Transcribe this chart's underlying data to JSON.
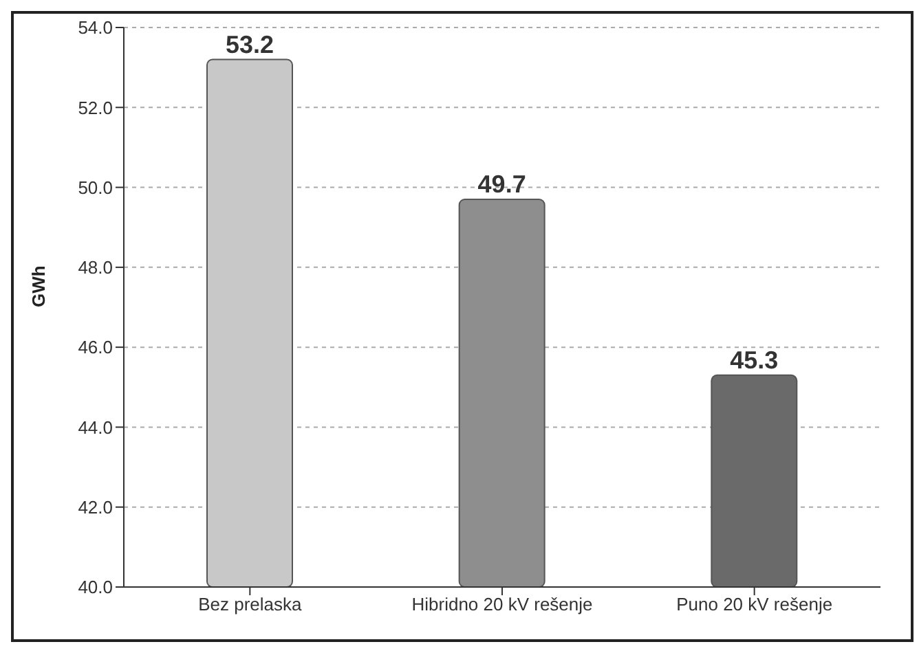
{
  "chart_data": {
    "type": "bar",
    "ylabel": "GWh",
    "categories": [
      "Bez prelaska",
      "Hibridno 20 kV rešenje",
      "Puno 20 kV rešenje"
    ],
    "values": [
      53.2,
      49.7,
      45.3
    ],
    "colors": [
      "#c8c8c8",
      "#8e8e8e",
      "#6a6a6a"
    ],
    "ylim": [
      40,
      54
    ],
    "yticks": [
      {
        "value": 40,
        "label": "40.0"
      },
      {
        "value": 42,
        "label": "42.0"
      },
      {
        "value": 44,
        "label": "44.0"
      },
      {
        "value": 46,
        "label": "46.0"
      },
      {
        "value": 48,
        "label": "48.0"
      },
      {
        "value": 50,
        "label": "50.0"
      },
      {
        "value": 52,
        "label": "52.0"
      },
      {
        "value": 54,
        "label": "54.0"
      }
    ],
    "grid": "y",
    "data_labels": true
  }
}
